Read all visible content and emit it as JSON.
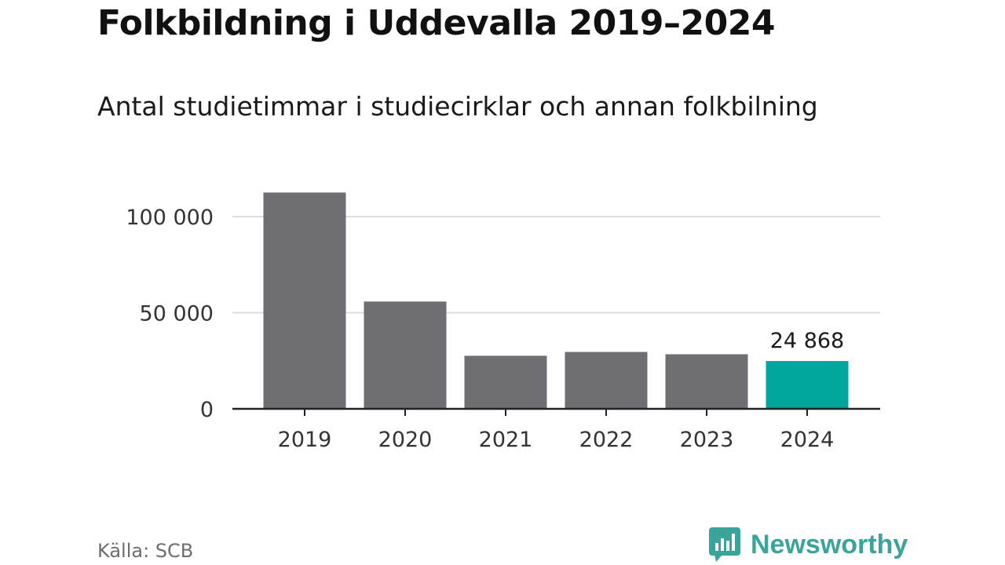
{
  "header": {
    "title": "Folkbildning i Uddevalla 2019–2024",
    "subtitle": "Antal studietimmar i studiecirklar och annan folkbilning"
  },
  "footer": {
    "source": "Källa: SCB",
    "brand": "Newsworthy"
  },
  "colors": {
    "bar": "#6e6e73",
    "highlight": "#00a59b",
    "brand": "#3aa39a"
  },
  "chart_data": {
    "type": "bar",
    "title": "Folkbildning i Uddevalla 2019–2024",
    "subtitle": "Antal studietimmar i studiecirklar och annan folkbilning",
    "categories": [
      "2019",
      "2020",
      "2021",
      "2022",
      "2023",
      "2024"
    ],
    "values": [
      112500,
      55800,
      27600,
      29600,
      28400,
      24868
    ],
    "highlight_index": 5,
    "data_labels": [
      {
        "index": 5,
        "text": "24 868"
      }
    ],
    "y_ticks": [
      {
        "value": 0,
        "label": "0"
      },
      {
        "value": 50000,
        "label": "50 000"
      },
      {
        "value": 100000,
        "label": "100 000"
      }
    ],
    "ylim": [
      0,
      125000
    ],
    "grid": true,
    "xlabel": "",
    "ylabel": ""
  }
}
